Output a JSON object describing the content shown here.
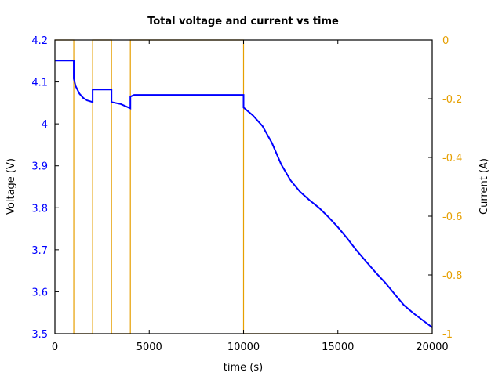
{
  "chart_data": {
    "type": "line",
    "title": "Total voltage and current vs time",
    "xlabel": "time (s)",
    "ylabel": "Voltage (V)",
    "y2label": "Current (A)",
    "xlim": [
      0,
      20000
    ],
    "ylim": [
      3.5,
      4.2
    ],
    "y2lim": [
      -1,
      0
    ],
    "grid": false,
    "legend": null,
    "xticks": [
      "0",
      "5000",
      "10000",
      "15000",
      "20000"
    ],
    "xtick_values": [
      0,
      5000,
      10000,
      15000,
      20000
    ],
    "yticks": [
      "3.5",
      "3.6",
      "3.7",
      "3.8",
      "3.9",
      "4",
      "4.1",
      "4.2"
    ],
    "ytick_values": [
      3.5,
      3.6,
      3.7,
      3.8,
      3.9,
      4.0,
      4.1,
      4.2
    ],
    "y2ticks": [
      "-1",
      "-0.8",
      "-0.6",
      "-0.4",
      "-0.2",
      "0"
    ],
    "y2tick_values": [
      -1,
      -0.8,
      -0.6,
      -0.4,
      -0.2,
      0
    ],
    "colors": {
      "voltage": "#0000ff",
      "current": "#e69f00",
      "axis": "#000000"
    },
    "series": [
      {
        "name": "Voltage (V)",
        "axis": "left",
        "x": [
          0,
          1000,
          1000,
          1100,
          1300,
          1500,
          1700,
          2000,
          2000,
          3000,
          3000,
          3500,
          4000,
          4000,
          4200,
          10000,
          10000,
          10500,
          11000,
          11500,
          12000,
          12500,
          13000,
          13500,
          14000,
          14500,
          15000,
          15500,
          16000,
          16500,
          17000,
          17500,
          18000,
          18500,
          19000,
          19500,
          20000
        ],
        "values": [
          4.151,
          4.151,
          4.108,
          4.09,
          4.072,
          4.062,
          4.056,
          4.052,
          4.082,
          4.082,
          4.052,
          4.047,
          4.037,
          4.065,
          4.069,
          4.069,
          4.039,
          4.02,
          3.995,
          3.955,
          3.903,
          3.865,
          3.838,
          3.818,
          3.8,
          3.778,
          3.754,
          3.727,
          3.698,
          3.672,
          3.646,
          3.622,
          3.595,
          3.568,
          3.549,
          3.532,
          3.515
        ]
      },
      {
        "name": "Current (A)",
        "axis": "right",
        "x": [
          0,
          1000,
          1000,
          2000,
          2000,
          3000,
          3000,
          4000,
          4000,
          10000,
          10000,
          20000
        ],
        "values": [
          0,
          0,
          -1,
          -1,
          0,
          0,
          -1,
          -1,
          0,
          0,
          -1,
          -1
        ]
      }
    ]
  }
}
